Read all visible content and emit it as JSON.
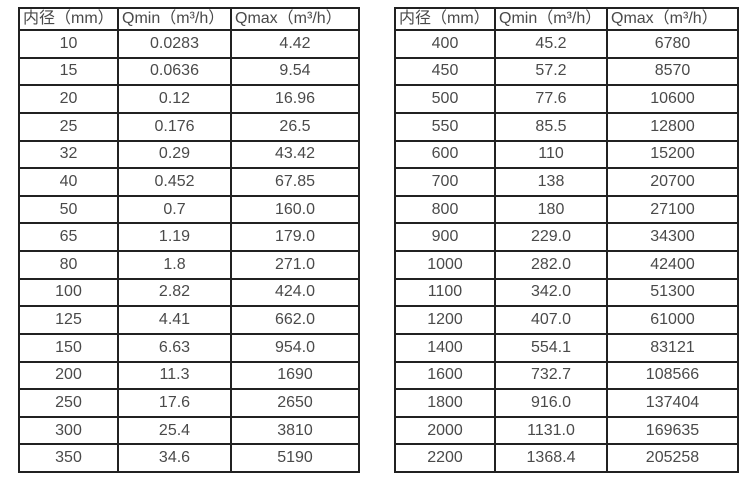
{
  "colors": {
    "background": "#ffffff",
    "border": "#212121",
    "text": "#4a4a4a"
  },
  "chart_data": [
    {
      "type": "table",
      "title": "",
      "columns": [
        "内径（mm）",
        "Qmin（m³/h）",
        "Qmax（m³/h）"
      ],
      "rows": [
        [
          "10",
          "0.0283",
          "4.42"
        ],
        [
          "15",
          "0.0636",
          "9.54"
        ],
        [
          "20",
          "0.12",
          "16.96"
        ],
        [
          "25",
          "0.176",
          "26.5"
        ],
        [
          "32",
          "0.29",
          "43.42"
        ],
        [
          "40",
          "0.452",
          "67.85"
        ],
        [
          "50",
          "0.7",
          "160.0"
        ],
        [
          "65",
          "1.19",
          "179.0"
        ],
        [
          "80",
          "1.8",
          "271.0"
        ],
        [
          "100",
          "2.82",
          "424.0"
        ],
        [
          "125",
          "4.41",
          "662.0"
        ],
        [
          "150",
          "6.63",
          "954.0"
        ],
        [
          "200",
          "11.3",
          "1690"
        ],
        [
          "250",
          "17.6",
          "2650"
        ],
        [
          "300",
          "25.4",
          "3810"
        ],
        [
          "350",
          "34.6",
          "5190"
        ]
      ]
    },
    {
      "type": "table",
      "title": "",
      "columns": [
        "内径（mm）",
        "Qmin（m³/h）",
        "Qmax（m³/h）"
      ],
      "rows": [
        [
          "400",
          "45.2",
          "6780"
        ],
        [
          "450",
          "57.2",
          "8570"
        ],
        [
          "500",
          "77.6",
          "10600"
        ],
        [
          "550",
          "85.5",
          "12800"
        ],
        [
          "600",
          "110",
          "15200"
        ],
        [
          "700",
          "138",
          "20700"
        ],
        [
          "800",
          "180",
          "27100"
        ],
        [
          "900",
          "229.0",
          "34300"
        ],
        [
          "1000",
          "282.0",
          "42400"
        ],
        [
          "1100",
          "342.0",
          "51300"
        ],
        [
          "1200",
          "407.0",
          "61000"
        ],
        [
          "1400",
          "554.1",
          "83121"
        ],
        [
          "1600",
          "732.7",
          "108566"
        ],
        [
          "1800",
          "916.0",
          "137404"
        ],
        [
          "2000",
          "1131.0",
          "169635"
        ],
        [
          "2200",
          "1368.4",
          "205258"
        ]
      ]
    }
  ]
}
